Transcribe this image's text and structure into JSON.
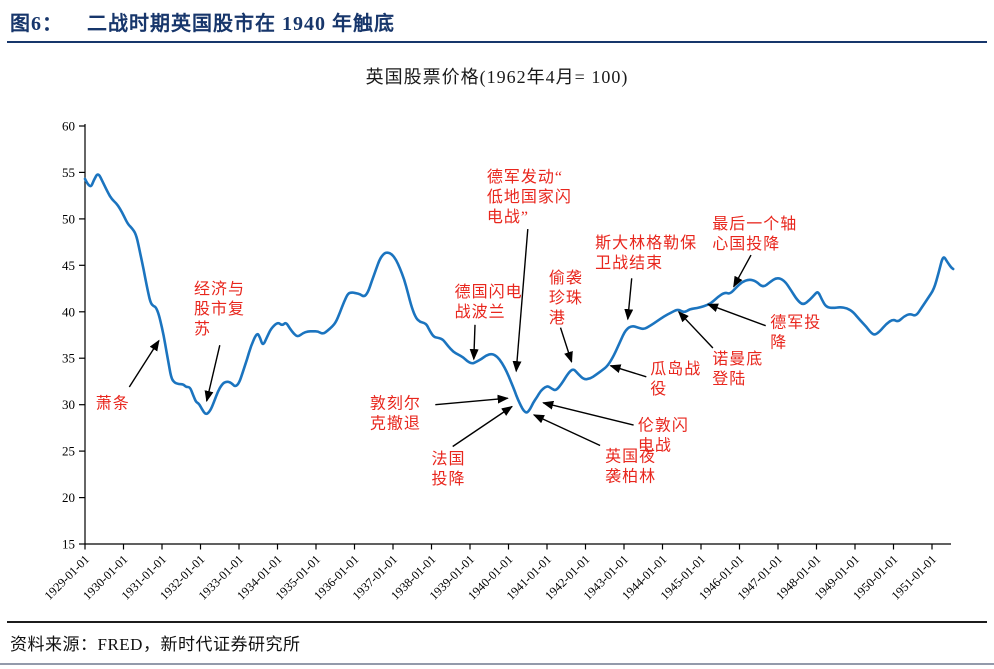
{
  "header": {
    "figure_label": "图6：",
    "title": "二战时期英国股市在 1940 年触底"
  },
  "footer": {
    "source_label": "资料来源：",
    "source_text": "FRED，新时代证券研究所"
  },
  "colors": {
    "accent_navy": "#17366b",
    "line_blue": "#1b74bf",
    "annotation_red": "#e8261d",
    "axis_black": "#000000"
  },
  "chart_data": {
    "type": "line",
    "title": "英国股票价格(1962年4月= 100)",
    "xlabel": "",
    "ylabel": "",
    "xlim": [
      1929.0,
      1951.65
    ],
    "ylim": [
      15,
      60
    ],
    "grid": false,
    "legend": "none",
    "y_ticks": [
      60,
      55,
      50,
      45,
      40,
      35,
      30,
      25,
      20,
      15
    ],
    "x_ticks": [
      "1929-01-01",
      "1930-01-01",
      "1931-01-01",
      "1932-01-01",
      "1933-01-01",
      "1934-01-01",
      "1935-01-01",
      "1936-01-01",
      "1937-01-01",
      "1938-01-01",
      "1939-01-01",
      "1940-01-01",
      "1941-01-01",
      "1942-01-01",
      "1943-01-01",
      "1944-01-01",
      "1945-01-01",
      "1946-01-01",
      "1947-01-01",
      "1948-01-01",
      "1949-01-01",
      "1950-01-01",
      "1951-01-01"
    ],
    "series": [
      {
        "name": "英国股票价格",
        "color": "#1b74bf",
        "points": [
          [
            1929.0,
            54.3
          ],
          [
            1929.13,
            53.2
          ],
          [
            1929.23,
            54.2
          ],
          [
            1929.34,
            55.0
          ],
          [
            1929.47,
            53.9
          ],
          [
            1929.6,
            52.8
          ],
          [
            1929.7,
            52.1
          ],
          [
            1929.81,
            51.7
          ],
          [
            1929.91,
            51.1
          ],
          [
            1930.01,
            50.3
          ],
          [
            1930.12,
            49.4
          ],
          [
            1930.22,
            49.0
          ],
          [
            1930.32,
            48.4
          ],
          [
            1930.4,
            47.0
          ],
          [
            1930.48,
            45.4
          ],
          [
            1930.56,
            43.7
          ],
          [
            1930.64,
            42.1
          ],
          [
            1930.71,
            40.9
          ],
          [
            1930.78,
            40.6
          ],
          [
            1930.84,
            40.5
          ],
          [
            1930.92,
            39.7
          ],
          [
            1931.0,
            38.3
          ],
          [
            1931.08,
            36.6
          ],
          [
            1931.16,
            34.7
          ],
          [
            1931.23,
            33.0
          ],
          [
            1931.31,
            32.4
          ],
          [
            1931.44,
            32.2
          ],
          [
            1931.55,
            32.2
          ],
          [
            1931.62,
            31.9
          ],
          [
            1931.73,
            31.9
          ],
          [
            1931.81,
            31.0
          ],
          [
            1931.88,
            30.3
          ],
          [
            1931.96,
            30.1
          ],
          [
            1932.04,
            29.5
          ],
          [
            1932.14,
            28.9
          ],
          [
            1932.25,
            29.3
          ],
          [
            1932.35,
            30.3
          ],
          [
            1932.45,
            31.4
          ],
          [
            1932.56,
            32.2
          ],
          [
            1932.66,
            32.5
          ],
          [
            1932.79,
            32.4
          ],
          [
            1932.9,
            31.9
          ],
          [
            1933.0,
            32.3
          ],
          [
            1933.1,
            33.5
          ],
          [
            1933.21,
            34.9
          ],
          [
            1933.31,
            36.3
          ],
          [
            1933.47,
            37.8
          ],
          [
            1933.55,
            37.2
          ],
          [
            1933.62,
            36.3
          ],
          [
            1933.73,
            37.3
          ],
          [
            1933.83,
            38.2
          ],
          [
            1934.01,
            38.9
          ],
          [
            1934.12,
            38.5
          ],
          [
            1934.22,
            38.9
          ],
          [
            1934.32,
            38.2
          ],
          [
            1934.43,
            37.6
          ],
          [
            1934.53,
            37.3
          ],
          [
            1934.66,
            37.7
          ],
          [
            1934.79,
            37.9
          ],
          [
            1934.92,
            37.9
          ],
          [
            1935.05,
            37.9
          ],
          [
            1935.18,
            37.6
          ],
          [
            1935.31,
            38.0
          ],
          [
            1935.42,
            38.4
          ],
          [
            1935.52,
            38.9
          ],
          [
            1935.62,
            39.9
          ],
          [
            1935.73,
            41.1
          ],
          [
            1935.83,
            42.0
          ],
          [
            1935.94,
            42.1
          ],
          [
            1936.04,
            42.0
          ],
          [
            1936.14,
            41.9
          ],
          [
            1936.25,
            41.6
          ],
          [
            1936.35,
            42.1
          ],
          [
            1936.45,
            43.3
          ],
          [
            1936.56,
            44.6
          ],
          [
            1936.66,
            45.7
          ],
          [
            1936.77,
            46.3
          ],
          [
            1936.87,
            46.4
          ],
          [
            1936.97,
            46.2
          ],
          [
            1937.08,
            45.6
          ],
          [
            1937.18,
            44.7
          ],
          [
            1937.29,
            43.5
          ],
          [
            1937.39,
            42.0
          ],
          [
            1937.49,
            40.4
          ],
          [
            1937.6,
            39.3
          ],
          [
            1937.7,
            38.9
          ],
          [
            1937.81,
            38.8
          ],
          [
            1937.88,
            38.6
          ],
          [
            1937.96,
            37.9
          ],
          [
            1938.06,
            37.3
          ],
          [
            1938.17,
            37.2
          ],
          [
            1938.25,
            37.1
          ],
          [
            1938.32,
            36.9
          ],
          [
            1938.43,
            36.3
          ],
          [
            1938.56,
            35.7
          ],
          [
            1938.69,
            35.4
          ],
          [
            1938.82,
            35.1
          ],
          [
            1938.92,
            34.7
          ],
          [
            1939.05,
            34.4
          ],
          [
            1939.16,
            34.6
          ],
          [
            1939.29,
            34.9
          ],
          [
            1939.42,
            35.3
          ],
          [
            1939.57,
            35.5
          ],
          [
            1939.7,
            35.2
          ],
          [
            1939.83,
            34.5
          ],
          [
            1939.96,
            33.5
          ],
          [
            1940.06,
            32.5
          ],
          [
            1940.17,
            31.4
          ],
          [
            1940.25,
            30.5
          ],
          [
            1940.32,
            29.9
          ],
          [
            1940.4,
            29.3
          ],
          [
            1940.48,
            29.1
          ],
          [
            1940.56,
            29.5
          ],
          [
            1940.64,
            30.2
          ],
          [
            1940.74,
            30.8
          ],
          [
            1940.84,
            31.5
          ],
          [
            1940.95,
            31.9
          ],
          [
            1941.03,
            32.0
          ],
          [
            1941.13,
            31.7
          ],
          [
            1941.23,
            31.5
          ],
          [
            1941.39,
            32.3
          ],
          [
            1941.55,
            33.4
          ],
          [
            1941.68,
            33.9
          ],
          [
            1941.81,
            33.3
          ],
          [
            1941.96,
            32.7
          ],
          [
            1942.12,
            32.8
          ],
          [
            1942.27,
            33.2
          ],
          [
            1942.43,
            33.7
          ],
          [
            1942.58,
            34.2
          ],
          [
            1942.74,
            35.3
          ],
          [
            1942.9,
            36.8
          ],
          [
            1943.05,
            38.1
          ],
          [
            1943.21,
            38.5
          ],
          [
            1943.36,
            38.3
          ],
          [
            1943.52,
            38.1
          ],
          [
            1943.68,
            38.5
          ],
          [
            1943.86,
            39.0
          ],
          [
            1944.04,
            39.5
          ],
          [
            1944.22,
            39.9
          ],
          [
            1944.4,
            40.3
          ],
          [
            1944.56,
            39.9
          ],
          [
            1944.71,
            40.3
          ],
          [
            1944.9,
            40.4
          ],
          [
            1945.08,
            40.6
          ],
          [
            1945.26,
            40.9
          ],
          [
            1945.44,
            41.6
          ],
          [
            1945.62,
            42.1
          ],
          [
            1945.75,
            41.9
          ],
          [
            1945.91,
            42.6
          ],
          [
            1946.06,
            43.2
          ],
          [
            1946.25,
            43.5
          ],
          [
            1946.43,
            43.3
          ],
          [
            1946.61,
            42.6
          ],
          [
            1946.79,
            43.2
          ],
          [
            1946.97,
            43.7
          ],
          [
            1947.16,
            43.4
          ],
          [
            1947.34,
            42.3
          ],
          [
            1947.49,
            41.3
          ],
          [
            1947.65,
            40.7
          ],
          [
            1947.83,
            41.3
          ],
          [
            1947.96,
            41.9
          ],
          [
            1948.04,
            42.2
          ],
          [
            1948.14,
            41.3
          ],
          [
            1948.25,
            40.5
          ],
          [
            1948.43,
            40.4
          ],
          [
            1948.61,
            40.5
          ],
          [
            1948.79,
            40.4
          ],
          [
            1948.95,
            40.0
          ],
          [
            1949.13,
            39.1
          ],
          [
            1949.29,
            38.4
          ],
          [
            1949.42,
            37.7
          ],
          [
            1949.52,
            37.5
          ],
          [
            1949.65,
            37.9
          ],
          [
            1949.81,
            38.7
          ],
          [
            1949.99,
            39.2
          ],
          [
            1950.12,
            38.9
          ],
          [
            1950.27,
            39.5
          ],
          [
            1950.43,
            39.8
          ],
          [
            1950.58,
            39.5
          ],
          [
            1950.74,
            40.5
          ],
          [
            1950.9,
            41.5
          ],
          [
            1951.05,
            42.4
          ],
          [
            1951.18,
            44.3
          ],
          [
            1951.29,
            46.1
          ],
          [
            1951.39,
            45.4
          ],
          [
            1951.49,
            44.8
          ],
          [
            1951.55,
            44.6
          ]
        ]
      }
    ],
    "annotations": [
      {
        "name": "depression",
        "lines": [
          "萧条"
        ],
        "label_pos": [
          1929.28,
          31.1
        ],
        "arrow": {
          "from": [
            1930.15,
            31.9
          ],
          "to": [
            1930.92,
            36.9
          ]
        }
      },
      {
        "name": "economy-market-recovery",
        "lines": [
          "经济与",
          "股市复",
          "苏"
        ],
        "label_pos": [
          1931.83,
          43.4
        ],
        "arrow": {
          "from": [
            1932.5,
            36.4
          ],
          "to": [
            1932.16,
            30.4
          ]
        }
      },
      {
        "name": "blitz-low-countries",
        "lines": [
          "德军发动“",
          "低地国家闪",
          "电战”"
        ],
        "label_pos": [
          1939.44,
          55.5
        ],
        "arrow": {
          "from": [
            1940.5,
            48.9
          ],
          "to": [
            1940.2,
            33.6
          ]
        }
      },
      {
        "name": "blitz-poland",
        "lines": [
          "德国闪电",
          "战波兰"
        ],
        "label_pos": [
          1938.6,
          43.1
        ],
        "arrow": {
          "from": [
            1939.13,
            38.6
          ],
          "to": [
            1939.1,
            34.9
          ]
        }
      },
      {
        "name": "pearl-harbor",
        "lines": [
          "偷袭",
          "珍珠",
          "港"
        ],
        "label_pos": [
          1941.05,
          44.6
        ],
        "arrow": {
          "from": [
            1941.35,
            38.3
          ],
          "to": [
            1941.64,
            34.6
          ]
        }
      },
      {
        "name": "stalingrad-end",
        "lines": [
          "斯大林格勒保",
          "卫战结束"
        ],
        "label_pos": [
          1942.25,
          48.4
        ],
        "arrow": {
          "from": [
            1943.2,
            43.6
          ],
          "to": [
            1943.1,
            39.2
          ]
        }
      },
      {
        "name": "last-axis-surrender",
        "lines": [
          "最后一个轴",
          "心国投降"
        ],
        "label_pos": [
          1945.29,
          50.4
        ],
        "arrow": {
          "from": [
            1946.3,
            46.1
          ],
          "to": [
            1945.85,
            42.7
          ]
        }
      },
      {
        "name": "guadalcanal",
        "lines": [
          "瓜岛战",
          "役"
        ],
        "label_pos": [
          1943.68,
          34.8
        ],
        "arrow": {
          "from": [
            1943.58,
            33.0
          ],
          "to": [
            1942.65,
            34.2
          ]
        }
      },
      {
        "name": "london-blitz",
        "lines": [
          "伦敦闪",
          "电战"
        ],
        "label_pos": [
          1943.36,
          28.7
        ],
        "arrow": {
          "from": [
            1943.25,
            27.8
          ],
          "to": [
            1940.9,
            30.2
          ]
        }
      },
      {
        "name": "uk-night-raid-berlin",
        "lines": [
          "英国夜",
          "袭柏林"
        ],
        "label_pos": [
          1942.51,
          25.4
        ],
        "arrow": {
          "from": [
            1942.38,
            25.6
          ],
          "to": [
            1940.66,
            28.9
          ]
        }
      },
      {
        "name": "france-surrender",
        "lines": [
          "法国",
          "投降"
        ],
        "label_pos": [
          1938.0,
          25.1
        ],
        "arrow": {
          "from": [
            1938.55,
            25.5
          ],
          "to": [
            1940.09,
            29.8
          ]
        }
      },
      {
        "name": "dunkirk-evacuation",
        "lines": [
          "敦刻尔",
          "克撤退"
        ],
        "label_pos": [
          1936.4,
          31.1
        ],
        "arrow": {
          "from": [
            1938.1,
            30.0
          ],
          "to": [
            1939.98,
            30.7
          ]
        }
      },
      {
        "name": "normandy-landing",
        "lines": [
          "诺曼底",
          "登陆"
        ],
        "label_pos": [
          1945.29,
          35.9
        ],
        "arrow": {
          "from": [
            1945.31,
            36.1
          ],
          "to": [
            1944.42,
            40.0
          ]
        }
      },
      {
        "name": "german-surrender",
        "lines": [
          "德军投",
          "降"
        ],
        "label_pos": [
          1946.8,
          39.8
        ],
        "arrow": {
          "from": [
            1946.68,
            38.5
          ],
          "to": [
            1945.18,
            40.8
          ]
        }
      }
    ]
  }
}
